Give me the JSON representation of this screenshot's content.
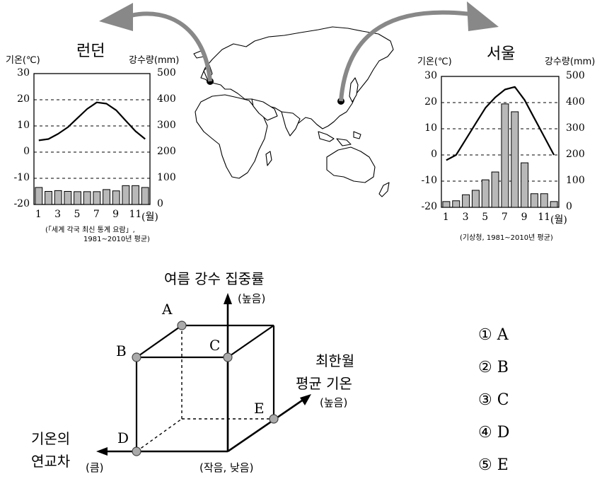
{
  "london": {
    "title": "런던",
    "temp_label": "기온(℃)",
    "precip_label": "강수량(mm)",
    "left_ticks": [
      "30",
      "20",
      "10",
      "0",
      "-10",
      "-20"
    ],
    "right_ticks": [
      "500",
      "400",
      "300",
      "200",
      "100",
      "0"
    ],
    "month_ticks": [
      "1",
      "3",
      "5",
      "7",
      "9",
      "11"
    ],
    "month_unit": "(월)",
    "source_line1": "(「세계 각국 최신 통계 요람」,",
    "source_line2": "1981~2010년 평균)"
  },
  "seoul": {
    "title": "서울",
    "temp_label": "기온(℃)",
    "precip_label": "강수량(mm)",
    "left_ticks": [
      "30",
      "20",
      "10",
      "0",
      "-10",
      "-20"
    ],
    "right_ticks": [
      "500",
      "400",
      "300",
      "200",
      "100",
      "0"
    ],
    "month_ticks": [
      "1",
      "3",
      "5",
      "7",
      "9",
      "11"
    ],
    "month_unit": "(월)",
    "source": "(기상청, 1981~2010년 평균)"
  },
  "chart_data": [
    {
      "type": "bar",
      "title": "런던",
      "categories": [
        "1",
        "2",
        "3",
        "4",
        "5",
        "6",
        "7",
        "8",
        "9",
        "10",
        "11",
        "12"
      ],
      "series": [
        {
          "name": "기온",
          "type": "line",
          "values": [
            4.5,
            5,
            7,
            9.5,
            13,
            16.5,
            19,
            18.5,
            16,
            12,
            8,
            5
          ]
        },
        {
          "name": "강수량",
          "type": "bar",
          "values": [
            65,
            50,
            53,
            50,
            49,
            49,
            49,
            57,
            52,
            72,
            72,
            65
          ]
        }
      ],
      "ylim_left": [
        -20,
        30
      ],
      "ylim_right": [
        0,
        500
      ]
    },
    {
      "type": "bar",
      "title": "서울",
      "categories": [
        "1",
        "2",
        "3",
        "4",
        "5",
        "6",
        "7",
        "8",
        "9",
        "10",
        "11",
        "12"
      ],
      "series": [
        {
          "name": "기온",
          "type": "line",
          "values": [
            -2,
            0,
            6,
            12,
            18,
            22,
            25,
            26,
            21,
            14,
            7,
            0
          ]
        },
        {
          "name": "강수량",
          "type": "bar",
          "values": [
            22,
            25,
            48,
            65,
            105,
            135,
            395,
            365,
            170,
            52,
            52,
            22
          ]
        }
      ],
      "ylim_left": [
        -20,
        30
      ],
      "ylim_right": [
        0,
        500
      ]
    }
  ],
  "diagram": {
    "axis_up_title": "여름 강수 집중률",
    "axis_up_note": "(높음)",
    "axis_right_title_1": "최한월",
    "axis_right_title_2": "평균 기온",
    "axis_right_note": "(높음)",
    "axis_left_title_1": "기온의",
    "axis_left_title_2": "연교차",
    "axis_left_note": "(큼)",
    "origin_note": "(작음, 낮음)",
    "points": [
      "A",
      "B",
      "C",
      "D",
      "E"
    ]
  },
  "choices": [
    {
      "num": "①",
      "label": "A"
    },
    {
      "num": "②",
      "label": "B"
    },
    {
      "num": "③",
      "label": "C"
    },
    {
      "num": "④",
      "label": "D"
    },
    {
      "num": "⑤",
      "label": "E"
    }
  ]
}
